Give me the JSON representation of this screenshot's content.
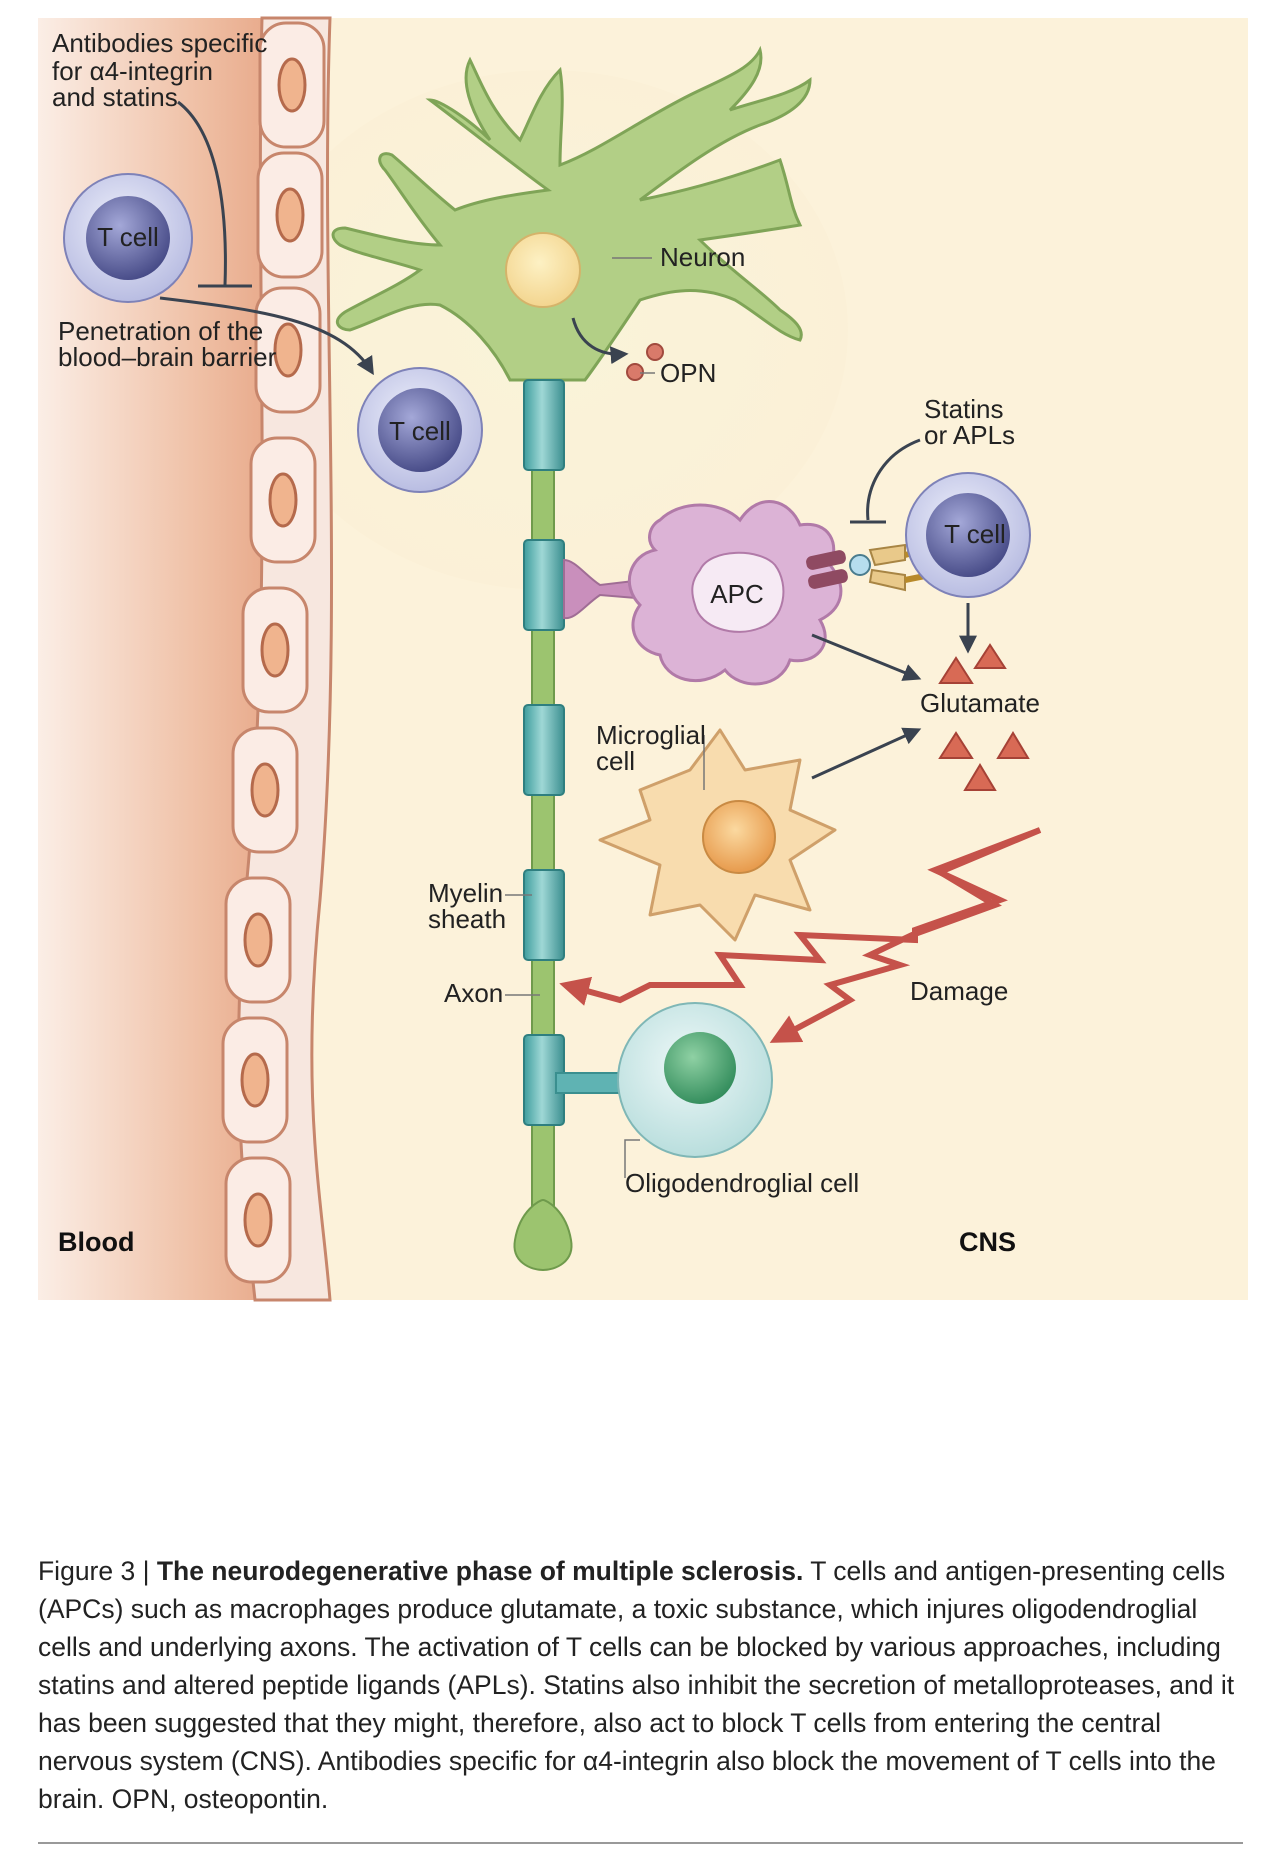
{
  "regions": {
    "blood": "Blood",
    "cns": "CNS"
  },
  "labels": {
    "antibodies": [
      "Antibodies specific",
      "for α4-integrin",
      "and statins"
    ],
    "t_cell": "T cell",
    "penetration": [
      "Penetration of the",
      "blood–brain barrier"
    ],
    "neuron": "Neuron",
    "opn": "OPN",
    "statins_apls": [
      "Statins",
      "or APLs"
    ],
    "apc": "APC",
    "glutamate": "Glutamate",
    "microglial": [
      "Microglial",
      "cell"
    ],
    "myelin": [
      "Myelin",
      "sheath"
    ],
    "axon": "Axon",
    "damage": "Damage",
    "oligodendroglial": "Oligodendroglial cell"
  },
  "caption": {
    "prefix": "Figure 3 | ",
    "title": "The neurodegenerative phase of multiple sclerosis.",
    "body": " T cells and antigen-presenting cells (APCs) such as macrophages produce glutamate, a toxic substance, which injures oligodendroglial cells and underlying axons. The activation of T cells can be blocked by various approaches, including statins and altered peptide ligands (APLs). Statins also inhibit the secretion of metalloproteases, and it has been suggested that they might, therefore, also act to block T cells from entering the central nervous system (CNS). Antibodies specific for α4-integrin also block the movement of T cells into the brain. OPN, osteopontin."
  },
  "colors": {
    "blood_bg": "#e8a88a",
    "cns_bg": "#fdf3dc",
    "neuron": "#a8c97a",
    "myelin": "#5fb3b3",
    "apc": "#d9aed0",
    "t_cell": "#6c6fa8",
    "microglia": "#f6d29c",
    "glutamate": "#c9574a",
    "damage_arrow": "#c5524a"
  }
}
